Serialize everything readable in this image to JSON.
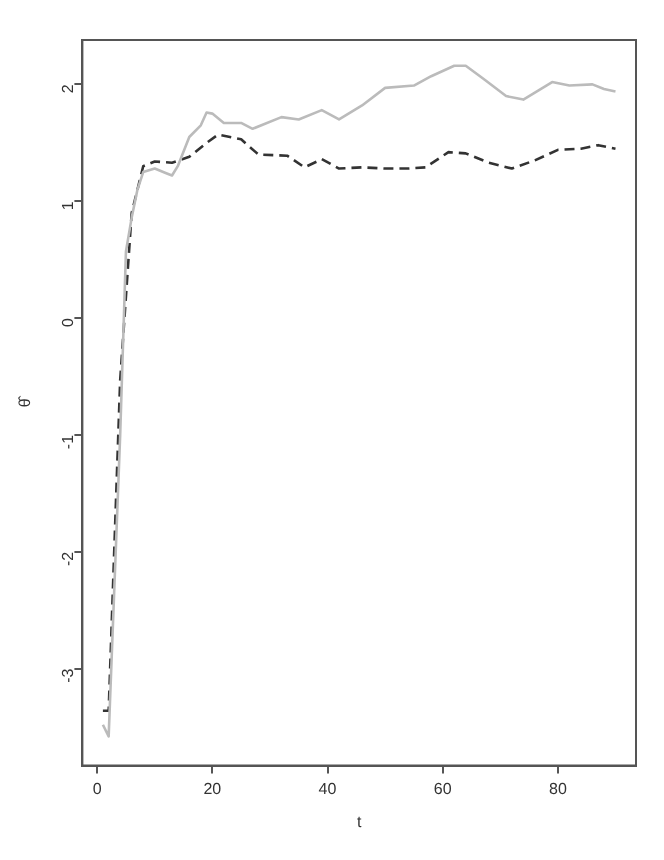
{
  "chart_data": {
    "type": "line",
    "xlabel": "t",
    "ylabel": "θ̂",
    "xlim": [
      -2.56,
      93.56
    ],
    "ylim": [
      -3.83,
      2.38
    ],
    "xticks": [
      0,
      20,
      40,
      60,
      80
    ],
    "yticks": [
      -3,
      -2,
      -1,
      0,
      1,
      2
    ],
    "grid": false,
    "legend": false,
    "marker": "none",
    "series": [
      {
        "color": "#bbbbbb",
        "line_style": "solid",
        "x": [
          1,
          2,
          4,
          5,
          6,
          7,
          8,
          10,
          12,
          13,
          14,
          16,
          18,
          19,
          20,
          22,
          25,
          27,
          32,
          35,
          39,
          42,
          46,
          50,
          55,
          58,
          62,
          64,
          67,
          71,
          74,
          76,
          79,
          82,
          86,
          88,
          90
        ],
        "values": [
          -3.48,
          -3.58,
          -1.0,
          0.57,
          0.86,
          1.1,
          1.25,
          1.28,
          1.24,
          1.22,
          1.3,
          1.55,
          1.65,
          1.76,
          1.75,
          1.67,
          1.67,
          1.62,
          1.72,
          1.7,
          1.78,
          1.7,
          1.82,
          1.97,
          1.99,
          2.07,
          2.16,
          2.16,
          2.05,
          1.9,
          1.87,
          1.93,
          2.02,
          1.99,
          2.0,
          1.96,
          1.94
        ]
      },
      {
        "color": "#333333",
        "line_style": "dashed",
        "x": [
          1,
          2,
          4,
          6,
          8,
          10,
          13,
          16,
          19,
          21,
          25,
          28,
          33,
          36,
          39,
          42,
          46,
          50,
          54,
          57,
          61,
          64,
          68,
          72,
          76,
          80,
          84,
          87,
          90
        ],
        "values": [
          -3.36,
          -3.36,
          -0.53,
          0.9,
          1.3,
          1.34,
          1.33,
          1.38,
          1.5,
          1.57,
          1.53,
          1.4,
          1.39,
          1.29,
          1.36,
          1.28,
          1.29,
          1.28,
          1.28,
          1.29,
          1.42,
          1.41,
          1.33,
          1.28,
          1.35,
          1.44,
          1.45,
          1.48,
          1.45
        ]
      }
    ]
  }
}
